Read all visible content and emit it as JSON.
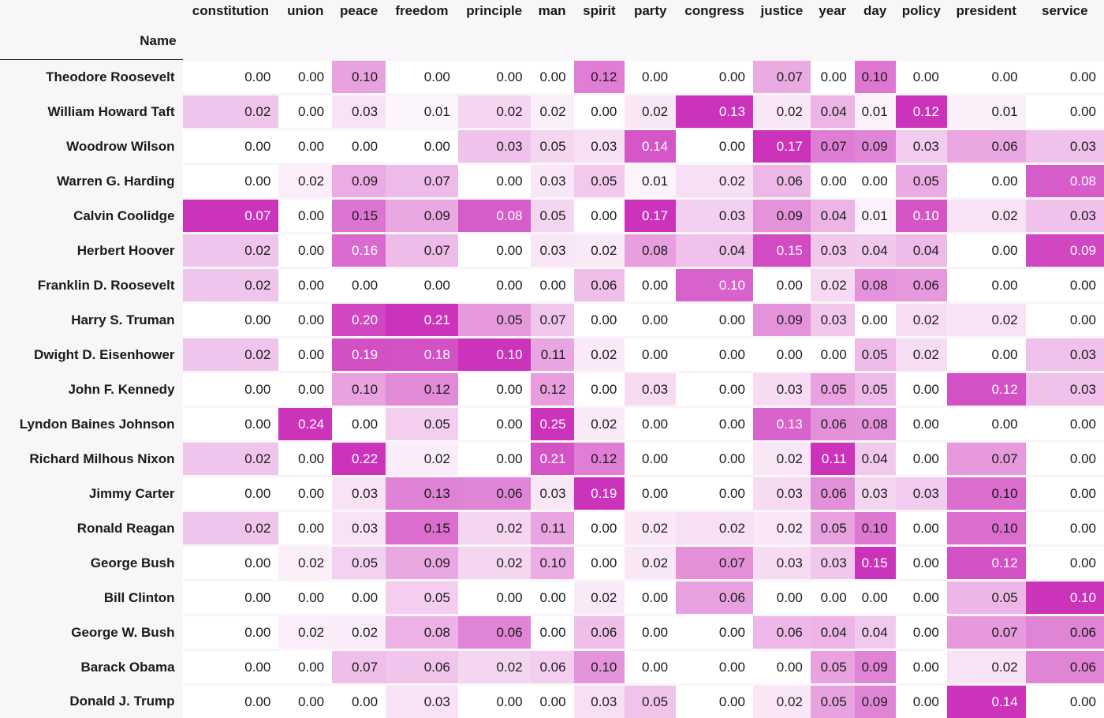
{
  "table": {
    "index_name": "Name"
  },
  "chart_data": {
    "type": "heatmap",
    "colormap": {
      "low": "#ffffff",
      "high": "#cc33bb"
    },
    "columns": [
      "constitution",
      "union",
      "peace",
      "freedom",
      "principle",
      "man",
      "spirit",
      "party",
      "congress",
      "justice",
      "year",
      "day",
      "policy",
      "president",
      "service"
    ],
    "rows": [
      "Theodore Roosevelt",
      "William Howard Taft",
      "Woodrow Wilson",
      "Warren G. Harding",
      "Calvin Coolidge",
      "Herbert Hoover",
      "Franklin D. Roosevelt",
      "Harry S. Truman",
      "Dwight D. Eisenhower",
      "John F. Kennedy",
      "Lyndon Baines Johnson",
      "Richard Milhous Nixon",
      "Jimmy Carter",
      "Ronald Reagan",
      "George Bush",
      "Bill Clinton",
      "George W. Bush",
      "Barack Obama",
      "Donald J. Trump"
    ],
    "values": [
      [
        0.0,
        0.0,
        0.1,
        0.0,
        0.0,
        0.0,
        0.12,
        0.0,
        0.0,
        0.07,
        0.0,
        0.1,
        0.0,
        0.0,
        0.0
      ],
      [
        0.02,
        0.0,
        0.03,
        0.01,
        0.02,
        0.02,
        0.0,
        0.02,
        0.13,
        0.02,
        0.04,
        0.01,
        0.12,
        0.01,
        0.0
      ],
      [
        0.0,
        0.0,
        0.0,
        0.0,
        0.03,
        0.05,
        0.03,
        0.14,
        0.0,
        0.17,
        0.07,
        0.09,
        0.03,
        0.06,
        0.03
      ],
      [
        0.0,
        0.02,
        0.09,
        0.07,
        0.0,
        0.03,
        0.05,
        0.01,
        0.02,
        0.06,
        0.0,
        0.0,
        0.05,
        0.0,
        0.08
      ],
      [
        0.07,
        0.0,
        0.15,
        0.09,
        0.08,
        0.05,
        0.0,
        0.17,
        0.03,
        0.09,
        0.04,
        0.01,
        0.1,
        0.02,
        0.03
      ],
      [
        0.02,
        0.0,
        0.16,
        0.07,
        0.0,
        0.03,
        0.02,
        0.08,
        0.04,
        0.15,
        0.03,
        0.04,
        0.04,
        0.0,
        0.09
      ],
      [
        0.02,
        0.0,
        0.0,
        0.0,
        0.0,
        0.0,
        0.06,
        0.0,
        0.1,
        0.0,
        0.02,
        0.08,
        0.06,
        0.0,
        0.0
      ],
      [
        0.0,
        0.0,
        0.2,
        0.21,
        0.05,
        0.07,
        0.0,
        0.0,
        0.0,
        0.09,
        0.03,
        0.0,
        0.02,
        0.02,
        0.0
      ],
      [
        0.02,
        0.0,
        0.19,
        0.18,
        0.1,
        0.11,
        0.02,
        0.0,
        0.0,
        0.0,
        0.0,
        0.05,
        0.02,
        0.0,
        0.03
      ],
      [
        0.0,
        0.0,
        0.1,
        0.12,
        0.0,
        0.12,
        0.0,
        0.03,
        0.0,
        0.03,
        0.05,
        0.05,
        0.0,
        0.12,
        0.03
      ],
      [
        0.0,
        0.24,
        0.0,
        0.05,
        0.0,
        0.25,
        0.02,
        0.0,
        0.0,
        0.13,
        0.06,
        0.08,
        0.0,
        0.0,
        0.0
      ],
      [
        0.02,
        0.0,
        0.22,
        0.02,
        0.0,
        0.21,
        0.12,
        0.0,
        0.0,
        0.02,
        0.11,
        0.04,
        0.0,
        0.07,
        0.0
      ],
      [
        0.0,
        0.0,
        0.03,
        0.13,
        0.06,
        0.03,
        0.19,
        0.0,
        0.0,
        0.03,
        0.06,
        0.03,
        0.03,
        0.1,
        0.0
      ],
      [
        0.02,
        0.0,
        0.03,
        0.15,
        0.02,
        0.11,
        0.0,
        0.02,
        0.02,
        0.02,
        0.05,
        0.1,
        0.0,
        0.1,
        0.0
      ],
      [
        0.0,
        0.02,
        0.05,
        0.09,
        0.02,
        0.1,
        0.0,
        0.02,
        0.07,
        0.03,
        0.03,
        0.15,
        0.0,
        0.12,
        0.0
      ],
      [
        0.0,
        0.0,
        0.0,
        0.05,
        0.0,
        0.0,
        0.02,
        0.0,
        0.06,
        0.0,
        0.0,
        0.0,
        0.0,
        0.05,
        0.1
      ],
      [
        0.0,
        0.02,
        0.02,
        0.08,
        0.06,
        0.0,
        0.06,
        0.0,
        0.0,
        0.06,
        0.04,
        0.04,
        0.0,
        0.07,
        0.06
      ],
      [
        0.0,
        0.0,
        0.07,
        0.06,
        0.02,
        0.06,
        0.1,
        0.0,
        0.0,
        0.0,
        0.05,
        0.09,
        0.0,
        0.02,
        0.06
      ],
      [
        0.0,
        0.0,
        0.0,
        0.03,
        0.0,
        0.0,
        0.03,
        0.05,
        0.0,
        0.02,
        0.05,
        0.09,
        0.0,
        0.14,
        0.0
      ]
    ]
  }
}
